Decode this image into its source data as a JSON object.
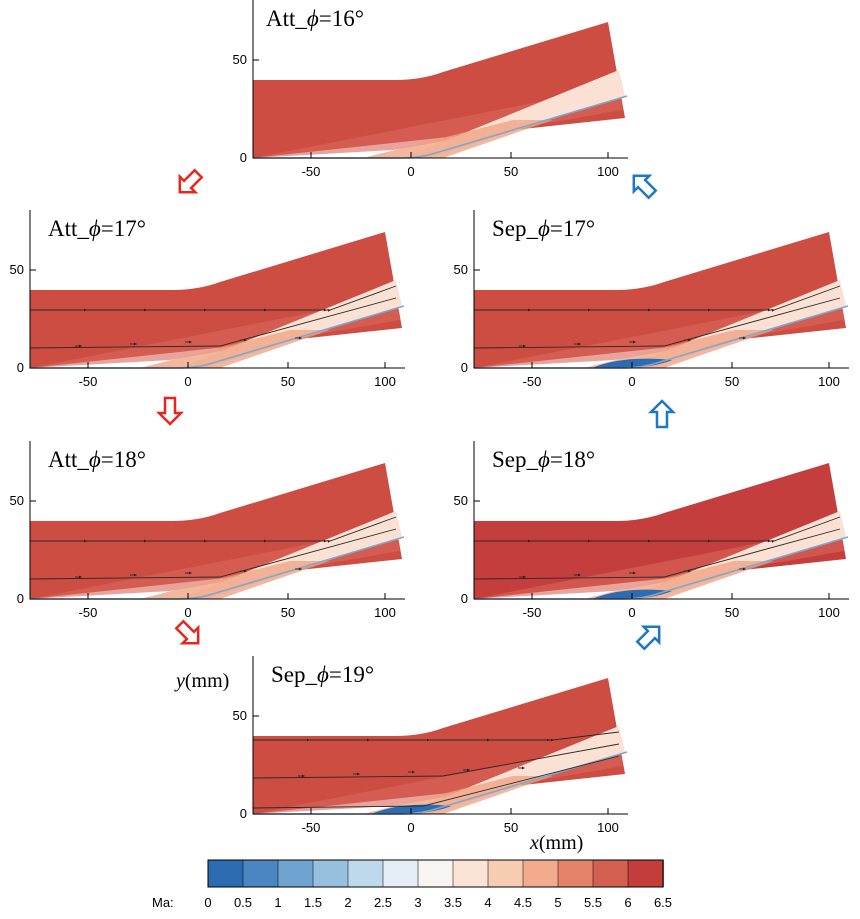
{
  "panels": [
    {
      "id": "att16",
      "title_prefix": "Att_",
      "phi_symbol": "ϕ",
      "title_suffix": "=16°",
      "regime": "attached",
      "streamlines": false
    },
    {
      "id": "att17",
      "title_prefix": "Att_",
      "phi_symbol": "ϕ",
      "title_suffix": "=17°",
      "regime": "attached",
      "streamlines": true
    },
    {
      "id": "sep17",
      "title_prefix": "Sep_",
      "phi_symbol": "ϕ",
      "title_suffix": "=17°",
      "regime": "separated",
      "streamlines": true
    },
    {
      "id": "att18",
      "title_prefix": "Att_",
      "phi_symbol": "ϕ",
      "title_suffix": "=18°",
      "regime": "attached",
      "streamlines": true
    },
    {
      "id": "sep18",
      "title_prefix": "Sep_",
      "phi_symbol": "ϕ",
      "title_suffix": "=18°",
      "regime": "separated",
      "streamlines": true
    },
    {
      "id": "sep19",
      "title_prefix": "Sep_",
      "phi_symbol": "ϕ",
      "title_suffix": "=19°",
      "regime": "separated",
      "streamlines": true
    }
  ],
  "axes": {
    "x_ticks": [
      "-50",
      "0",
      "50",
      "100"
    ],
    "y_ticks": [
      "0",
      "50"
    ],
    "x_label_var": "x",
    "x_label_unit": "(mm)",
    "y_label_var": "y",
    "y_label_unit": "(mm)"
  },
  "colorbar": {
    "label": "Ma:",
    "ticks": [
      "0",
      "0.5",
      "1",
      "1.5",
      "2",
      "2.5",
      "3",
      "3.5",
      "4",
      "4.5",
      "5",
      "5.5",
      "6",
      "6.5"
    ],
    "colors": [
      "#2b6cb3",
      "#4a87c2",
      "#6fa4d1",
      "#97c0df",
      "#bfd9ec",
      "#e3eef6",
      "#f7f4f2",
      "#fbe3d6",
      "#f8cbb3",
      "#f2ab8c",
      "#e4836a",
      "#d4614f",
      "#c33e3b"
    ]
  },
  "transitions": [
    {
      "from": "att16",
      "to": "att17",
      "color": "#e8261d"
    },
    {
      "from": "att17",
      "to": "att18",
      "color": "#e8261d"
    },
    {
      "from": "att18",
      "to": "sep19",
      "color": "#e8261d"
    },
    {
      "from": "sep19",
      "to": "sep18",
      "color": "#1c78c2"
    },
    {
      "from": "sep18",
      "to": "sep17",
      "color": "#1c78c2"
    },
    {
      "from": "sep17",
      "to": "att16",
      "color": "#1c78c2"
    }
  ],
  "colors": {
    "freestream": "#cd4d43",
    "freestream_dark": "#c33e3c",
    "shock_layer": "#fbe1d3",
    "compression": "#ef9f7f",
    "separation": "#2b6cb3",
    "wall": "#7ea7cf",
    "red_arrow": "#e8261d",
    "blue_arrow": "#1c78c2"
  }
}
